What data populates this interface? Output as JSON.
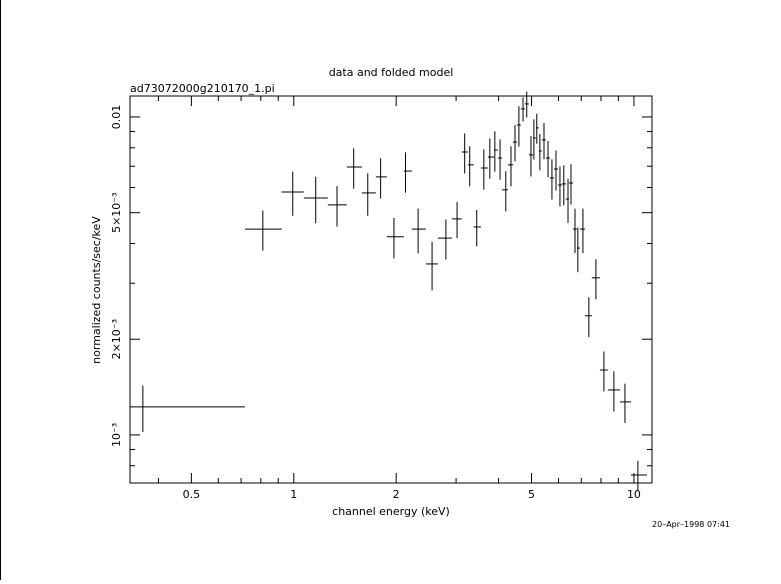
{
  "chart_data": {
    "type": "scatter",
    "title": "data and folded model",
    "subtitle": "ad73072000g210170_1.pi",
    "x_label": "channel energy (keV)",
    "y_label": "normalized counts/sec/keV",
    "footer": "20–Apr–1998 07:41",
    "log_x": true,
    "log_y": true,
    "color": "#000000",
    "xlim": [
      0.33,
      11.3
    ],
    "ylim": [
      0.000706,
      0.01164
    ],
    "xticks": [
      0.5,
      1,
      2,
      5,
      10
    ],
    "x_minor_ticks": [
      0.4,
      0.6,
      0.7,
      0.8,
      0.9,
      3,
      4,
      6,
      7,
      8,
      9
    ],
    "yticks": [
      0.01,
      {
        "value": 0.005,
        "label": "5×10⁻³"
      },
      {
        "value": 0.002,
        "label": "2×10⁻³"
      },
      {
        "value": 0.001,
        "label": "10⁻³"
      }
    ],
    "y_minor_ticks": [
      0.0008,
      0.0009,
      0.003,
      0.004,
      0.006,
      0.007,
      0.008,
      0.009
    ],
    "x": [
      0.36,
      0.811,
      0.993,
      1.16,
      1.34,
      1.5,
      1.65,
      1.8,
      1.97,
      2.13,
      2.32,
      2.55,
      2.8,
      3.02,
      3.18,
      3.29,
      3.45,
      3.62,
      3.77,
      3.9,
      4.04,
      4.2,
      4.35,
      4.47,
      4.59,
      4.72,
      4.84,
      4.98,
      5.08,
      5.18,
      5.29,
      5.44,
      5.59,
      5.74,
      5.9,
      6.06,
      6.22,
      6.4,
      6.53,
      6.71,
      6.84,
      7.08,
      7.37,
      7.73,
      8.16,
      8.73,
      9.41,
      10.27
    ],
    "x_low": [
      0.329,
      0.718,
      0.922,
      1.07,
      1.259,
      1.432,
      1.585,
      1.743,
      1.877,
      2.106,
      2.223,
      2.445,
      2.652,
      2.915,
      3.12,
      3.25,
      3.38,
      3.55,
      3.72,
      3.88,
      3.98,
      4.09,
      4.26,
      4.41,
      4.53,
      4.65,
      4.78,
      4.91,
      5.05,
      5.15,
      5.25,
      5.36,
      5.51,
      5.66,
      5.82,
      5.98,
      6.14,
      6.31,
      6.44,
      6.62,
      6.8,
      6.94,
      7.18,
      7.52,
      7.94,
      8.38,
      9.1,
      9.8
    ],
    "x_high": [
      0.718,
      0.922,
      1.07,
      1.259,
      1.432,
      1.585,
      1.743,
      1.877,
      2.106,
      2.223,
      2.445,
      2.652,
      2.915,
      3.12,
      3.25,
      3.38,
      3.55,
      3.72,
      3.88,
      3.98,
      4.09,
      4.26,
      4.41,
      4.53,
      4.65,
      4.78,
      4.91,
      5.05,
      5.15,
      5.25,
      5.36,
      5.51,
      5.66,
      5.82,
      5.98,
      6.14,
      6.31,
      6.44,
      6.62,
      6.8,
      6.94,
      7.18,
      7.52,
      7.94,
      8.38,
      9.1,
      9.8,
      10.92
    ],
    "values": [
      0.001225,
      0.00444,
      0.00581,
      0.00556,
      0.00529,
      0.00696,
      0.00577,
      0.00648,
      0.0042,
      0.00676,
      0.00444,
      0.00345,
      0.00416,
      0.00478,
      0.00776,
      0.00707,
      0.00451,
      0.00691,
      0.00748,
      0.00787,
      0.00743,
      0.0059,
      0.00707,
      0.00834,
      0.00944,
      0.0106,
      0.01099,
      0.0076,
      0.00859,
      0.00924,
      0.00782,
      0.00847,
      0.00743,
      0.00643,
      0.00686,
      0.00611,
      0.00616,
      0.00552,
      0.0062,
      0.00444,
      0.00387,
      0.00444,
      0.00237,
      0.00312,
      0.0016,
      0.001385,
      0.00127,
      0.000748
    ],
    "errors": [
      0.000204,
      0.00064,
      0.00092,
      0.00093,
      0.00077,
      0.00101,
      0.00088,
      0.00094,
      0.00061,
      0.00098,
      0.00071,
      0.0006,
      0.0006,
      0.00062,
      0.00112,
      0.00102,
      0.00059,
      0.001,
      0.00108,
      0.00114,
      0.00108,
      0.00085,
      0.00102,
      0.00109,
      0.00137,
      0.00092,
      0.00103,
      0.0011,
      0.00124,
      0.001,
      0.00102,
      0.0011,
      0.00097,
      0.00093,
      0.00099,
      0.00088,
      0.00089,
      0.00088,
      0.0009,
      0.00071,
      0.00062,
      0.00071,
      0.00034,
      0.00045,
      0.00023,
      0.0002,
      0.00018,
      8.1e-05
    ]
  }
}
